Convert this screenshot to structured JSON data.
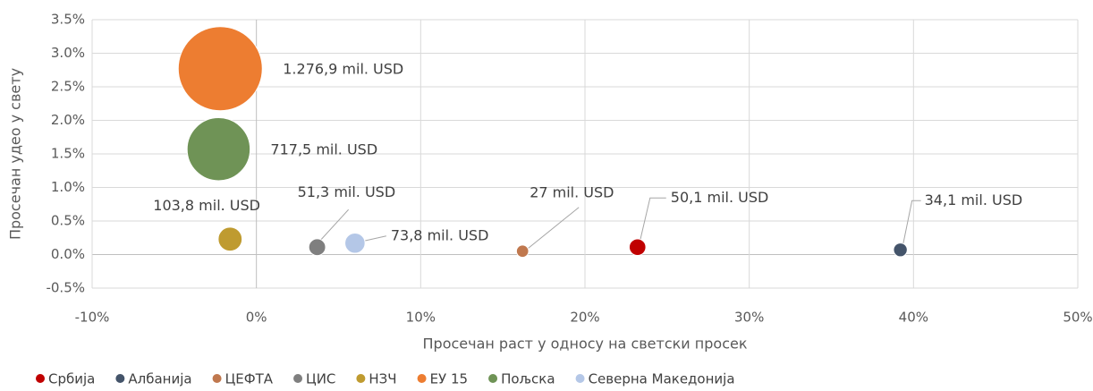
{
  "chart_data": {
    "type": "bubble",
    "x_label": "Просечан раст у односу на светски просек",
    "y_label": "Просечан удео у свету",
    "xlim": [
      -10,
      50
    ],
    "xticks": [
      {
        "value": -10,
        "label": "-10%"
      },
      {
        "value": 0,
        "label": "0%"
      },
      {
        "value": 10,
        "label": "10%"
      },
      {
        "value": 20,
        "label": "20%"
      },
      {
        "value": 30,
        "label": "30%"
      },
      {
        "value": 40,
        "label": "40%"
      },
      {
        "value": 50,
        "label": "50%"
      }
    ],
    "ylim": [
      -0.5,
      3.5
    ],
    "yticks": [
      {
        "value": -0.5,
        "label": "-0.5%"
      },
      {
        "value": 0,
        "label": "0.0%"
      },
      {
        "value": 0.5,
        "label": "0.5%"
      },
      {
        "value": 1,
        "label": "1.0%"
      },
      {
        "value": 1.5,
        "label": "1.5%"
      },
      {
        "value": 2,
        "label": "2.0%"
      },
      {
        "value": 2.5,
        "label": "2.5%"
      },
      {
        "value": 3,
        "label": "3.0%"
      },
      {
        "value": 3.5,
        "label": "3.5%"
      }
    ],
    "grid": true,
    "legend": "bottom",
    "series": [
      {
        "name": "Србија",
        "color": "#c00000",
        "x": [
          23.2
        ],
        "values": [
          0.11
        ],
        "sizes": [
          50.1
        ],
        "size_labels": [
          "50,1 mil. USD"
        ]
      },
      {
        "name": "Албанија",
        "color": "#44546a",
        "x": [
          39.2
        ],
        "values": [
          0.07
        ],
        "sizes": [
          34.1
        ],
        "size_labels": [
          "34,1 mil. USD"
        ]
      },
      {
        "name": "ЦЕФТА",
        "color": "#c0784e",
        "x": [
          16.2
        ],
        "values": [
          0.05
        ],
        "sizes": [
          27
        ],
        "size_labels": [
          "27 mil. USD"
        ]
      },
      {
        "name": "ЦИС",
        "color": "#7f7f7f",
        "x": [
          3.7
        ],
        "values": [
          0.11
        ],
        "sizes": [
          51.3
        ],
        "size_labels": [
          "51,3 mil. USD"
        ]
      },
      {
        "name": "НЗЧ",
        "color": "#bf9b30",
        "x": [
          -1.6
        ],
        "values": [
          0.23
        ],
        "sizes": [
          103.8
        ],
        "size_labels": [
          "103,8 mil. USD"
        ]
      },
      {
        "name": "ЕУ 15",
        "color": "#ed7d31",
        "x": [
          -2.2
        ],
        "values": [
          2.77
        ],
        "sizes": [
          1276.9
        ],
        "size_labels": [
          "1.276,9 mil. USD"
        ]
      },
      {
        "name": "Пољска",
        "color": "#6f9356",
        "x": [
          -2.3
        ],
        "values": [
          1.57
        ],
        "sizes": [
          717.5
        ],
        "size_labels": [
          "717,5 mil. USD"
        ]
      },
      {
        "name": "Северна Македонија",
        "color": "#b4c7e7",
        "x": [
          6.0
        ],
        "values": [
          0.17
        ],
        "sizes": [
          73.8
        ],
        "size_labels": [
          "73,8 mil. USD"
        ]
      }
    ]
  }
}
